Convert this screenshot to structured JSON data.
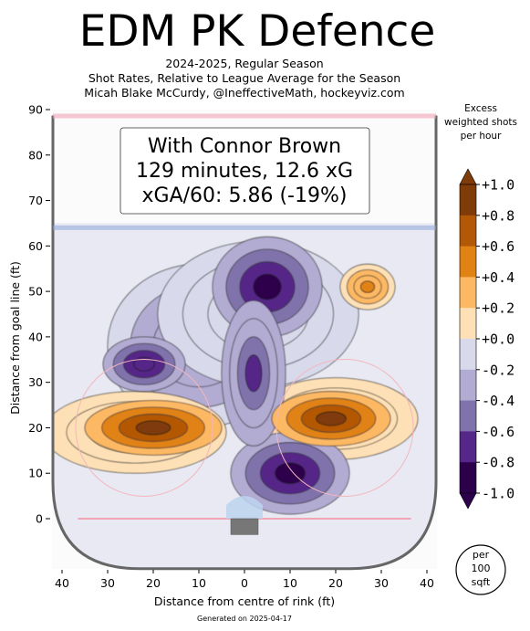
{
  "header": {
    "title": "EDM PK Defence",
    "subtitle_1": "2024-2025, Regular Season",
    "subtitle_2": "Shot Rates, Relative to League Average for the Season",
    "subtitle_3": "Micah Blake McCurdy, @IneffectiveMath, hockeyviz.com"
  },
  "infobox": {
    "line_1": "With Connor Brown",
    "line_2": "129 minutes, 12.6 xG",
    "line_3": "xGA/60: 5.86 (-19%)"
  },
  "footer": {
    "generated": "Generated on 2025-04-17"
  },
  "area_badge": {
    "line_1": "per",
    "line_2": "100",
    "line_3": "sqft"
  },
  "colorbar": {
    "title_1": "Excess",
    "title_2": "weighted shots",
    "title_3": "per hour",
    "ticks": [
      "+1.0",
      "+0.8",
      "+0.6",
      "+0.4",
      "+0.2",
      "+0.0",
      "-0.2",
      "-0.4",
      "-0.6",
      "-0.8",
      "-1.0"
    ],
    "tick_values": [
      1.0,
      0.8,
      0.6,
      0.4,
      0.2,
      0.0,
      -0.2,
      -0.4,
      -0.6,
      -0.8,
      -1.0
    ],
    "colors": [
      "#7f3b08",
      "#b35806",
      "#e08214",
      "#fdb863",
      "#fee0b6",
      "#f7f7f7",
      "#d8daeb",
      "#b2abd2",
      "#8073ac",
      "#542788",
      "#2d004b"
    ]
  },
  "chart_data": {
    "type": "heatmap",
    "xlabel": "Distance from centre of rink (ft)",
    "ylabel": "Distance from goal line (ft)",
    "xlim": [
      -42,
      42
    ],
    "ylim": [
      -11,
      90
    ],
    "x_ticks": [
      -40,
      -30,
      -20,
      -10,
      0,
      10,
      20,
      30,
      40
    ],
    "x_tick_labels": [
      "40",
      "30",
      "20",
      "10",
      "0",
      "10",
      "20",
      "30",
      "40"
    ],
    "y_ticks": [
      0,
      10,
      20,
      30,
      40,
      50,
      60,
      70,
      80,
      90
    ],
    "y_tick_labels": [
      "0",
      "10",
      "20",
      "30",
      "40",
      "50",
      "60",
      "70",
      "80",
      "90"
    ],
    "blobs": [
      {
        "cx": -20,
        "cy": 20,
        "rx": 15,
        "ry": 6,
        "value": 0.9
      },
      {
        "cx": -24,
        "cy": 19,
        "rx": 20,
        "ry": 9,
        "value": 0.35
      },
      {
        "cx": 19,
        "cy": 22,
        "rx": 13,
        "ry": 6,
        "value": 1.0
      },
      {
        "cx": 20,
        "cy": 22,
        "rx": 18,
        "ry": 9,
        "value": 0.4
      },
      {
        "cx": 27,
        "cy": 51,
        "rx": 6,
        "ry": 5,
        "value": 0.5
      },
      {
        "cx": 5,
        "cy": 51,
        "rx": 12,
        "ry": 11,
        "value": -1.0
      },
      {
        "cx": 2,
        "cy": 32,
        "rx": 7,
        "ry": 16,
        "value": -0.8
      },
      {
        "cx": 10,
        "cy": 10,
        "rx": 13,
        "ry": 9,
        "value": -1.0
      },
      {
        "cx": -22,
        "cy": 34,
        "rx": 9,
        "ry": 6,
        "value": -0.9
      },
      {
        "cx": -10,
        "cy": 38,
        "rx": 20,
        "ry": 18,
        "value": -0.5
      },
      {
        "cx": 3,
        "cy": 45,
        "rx": 22,
        "ry": 16,
        "value": -0.3
      }
    ]
  }
}
